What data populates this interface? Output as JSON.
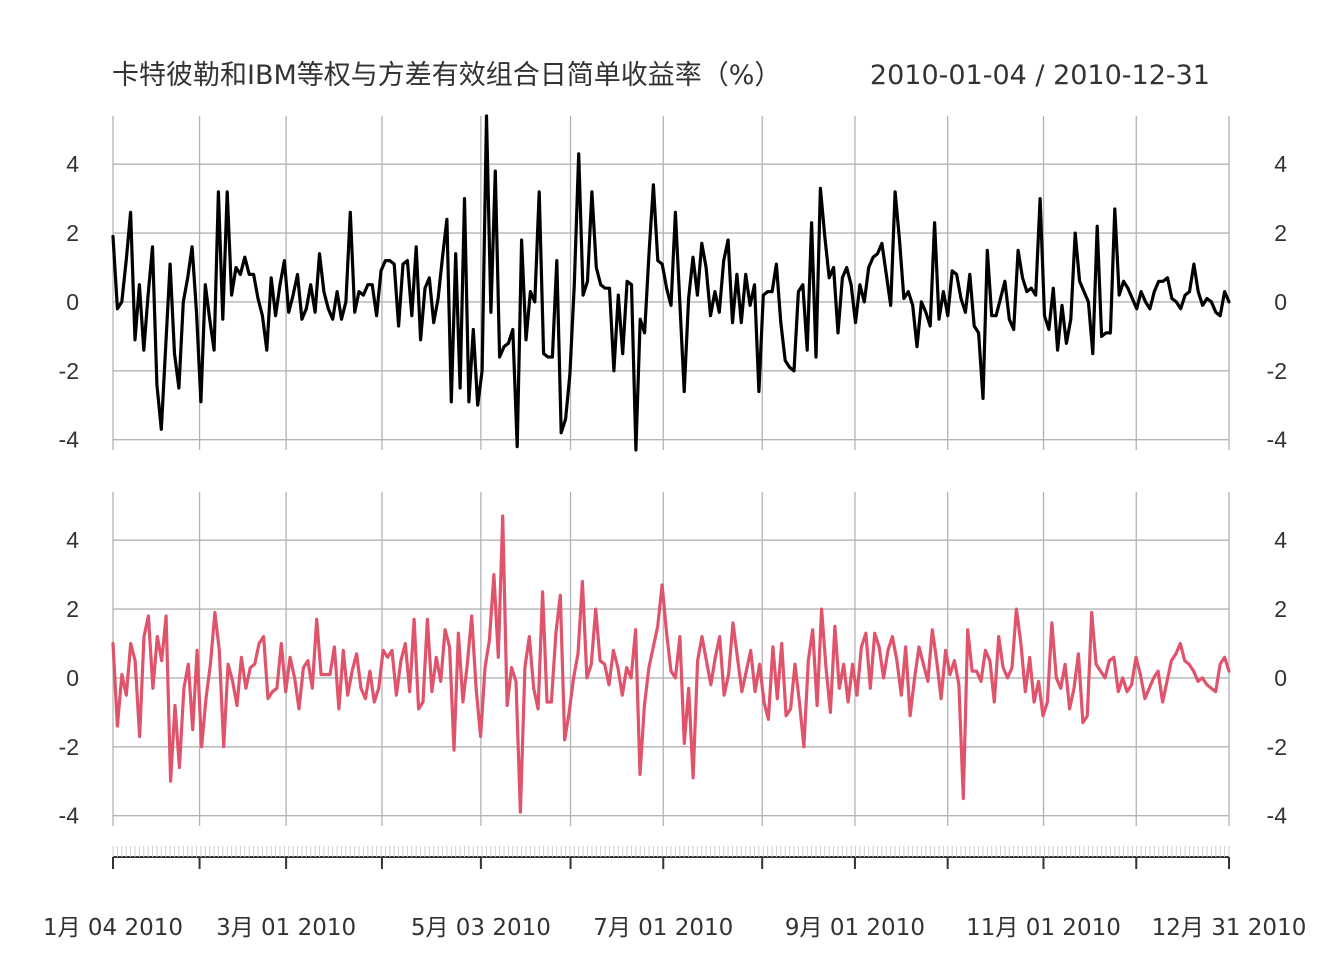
{
  "chart_data": {
    "type": "line",
    "title": "卡特彼勒和IBM等权与方差有效组合日简单收益率（%）",
    "date_range": "2010-01-04 / 2010-12-31",
    "ylim": [
      -4.3,
      5.4
    ],
    "y_ticks": [
      "4",
      "2",
      "0",
      "-2",
      "-4"
    ],
    "y_tick_values": [
      4,
      2,
      0,
      -2,
      -4
    ],
    "x_start": "2010-01-04",
    "x_end": "2010-12-31",
    "x_tick_labels": [
      {
        "label": "1月 04 2010",
        "date": "2010-01-04"
      },
      {
        "label": "3月 01 2010",
        "date": "2010-03-01"
      },
      {
        "label": "5月 03 2010",
        "date": "2010-05-03"
      },
      {
        "label": "7月 01 2010",
        "date": "2010-07-01"
      },
      {
        "label": "9月 01 2010",
        "date": "2010-09-01"
      },
      {
        "label": "11月 01 2010",
        "date": "2010-11-01"
      },
      {
        "label": "12月 31 2010",
        "date": "2010-12-31"
      }
    ],
    "x_grid_dates": [
      "2010-01-04",
      "2010-02-01",
      "2010-03-01",
      "2010-04-01",
      "2010-05-03",
      "2010-06-01",
      "2010-07-01",
      "2010-08-02",
      "2010-09-01",
      "2010-10-01",
      "2010-11-01",
      "2010-12-01",
      "2010-12-31"
    ],
    "grid": true,
    "series": [
      {
        "color": "#000000",
        "values": [
          1.9,
          -0.2,
          0.0,
          1.2,
          2.6,
          -1.1,
          0.5,
          -1.4,
          0.2,
          1.6,
          -2.4,
          -3.7,
          -1.3,
          1.1,
          -1.5,
          -2.5,
          0.0,
          0.7,
          1.6,
          -0.3,
          -2.9,
          0.5,
          -0.5,
          -1.4,
          3.2,
          -0.5,
          3.2,
          0.2,
          1.0,
          0.8,
          1.3,
          0.8,
          0.8,
          0.1,
          -0.4,
          -1.4,
          0.7,
          -0.4,
          0.5,
          1.2,
          -0.3,
          0.2,
          0.8,
          -0.5,
          -0.2,
          0.5,
          -0.3,
          1.4,
          0.3,
          -0.2,
          -0.5,
          0.3,
          -0.5,
          0.0,
          2.6,
          -0.3,
          0.3,
          0.2,
          0.5,
          0.5,
          -0.4,
          0.9,
          1.2,
          1.2,
          1.1,
          -0.7,
          1.1,
          1.2,
          -0.4,
          1.6,
          -1.1,
          0.4,
          0.7,
          -0.6,
          0.1,
          1.3,
          2.4,
          -2.9,
          1.4,
          -2.5,
          3.0,
          -2.9,
          -0.8,
          -3.0,
          -2.0,
          5.4,
          -0.3,
          3.8,
          -1.6,
          -1.3,
          -1.2,
          -0.8,
          -4.2,
          1.8,
          -1.1,
          0.3,
          0.0,
          3.2,
          -1.5,
          -1.6,
          -1.6,
          1.2,
          -3.8,
          -3.4,
          -2.1,
          0.5,
          4.3,
          0.2,
          0.6,
          3.2,
          1.0,
          0.5,
          0.4,
          0.4,
          -2.0,
          0.2,
          -1.5,
          0.6,
          0.5,
          -4.3,
          -0.5,
          -0.9,
          1.4,
          3.4,
          1.2,
          1.1,
          0.4,
          -0.1,
          2.6,
          0.0,
          -2.6,
          0.1,
          1.3,
          0.2,
          1.7,
          1.0,
          -0.4,
          0.3,
          -0.3,
          1.2,
          1.8,
          -0.6,
          0.8,
          -0.6,
          0.8,
          -0.1,
          0.5,
          -2.6,
          0.2,
          0.3,
          0.3,
          1.1,
          -0.6,
          -1.7,
          -1.9,
          -2.0,
          0.3,
          0.5,
          -1.4,
          2.3,
          -1.6,
          3.3,
          1.9,
          0.7,
          1.0,
          -0.9,
          0.7,
          1.0,
          0.5,
          -0.6,
          0.5,
          0.0,
          1.0,
          1.3,
          1.4,
          1.7,
          0.8,
          -0.1,
          3.2,
          1.8,
          0.1,
          0.3,
          -0.1,
          -1.3,
          0.0,
          -0.3,
          -0.7,
          2.3,
          -0.5,
          0.3,
          -0.4,
          0.9,
          0.8,
          0.1,
          -0.3,
          0.8,
          -0.7,
          -0.9,
          -2.8,
          1.5,
          -0.4,
          -0.4,
          0.1,
          0.6,
          -0.5,
          -0.8,
          1.5,
          0.7,
          0.3,
          0.4,
          0.2,
          3.0,
          -0.4,
          -0.8,
          0.4,
          -1.4,
          -0.1,
          -1.2,
          -0.5,
          2.0,
          0.6,
          0.3,
          0.0,
          -1.5,
          2.2,
          -1.0,
          -0.9,
          -0.9,
          2.7,
          0.2,
          0.6,
          0.4,
          0.1,
          -0.2,
          0.3,
          0.0,
          -0.2,
          0.3,
          0.6,
          0.6,
          0.7,
          0.1,
          0.0,
          -0.2,
          0.2,
          0.3,
          1.1,
          0.3,
          -0.1,
          0.1,
          0.0,
          -0.3,
          -0.4,
          0.3,
          0.0
        ]
      },
      {
        "color": "#df536b",
        "values": [
          1.0,
          -1.4,
          0.1,
          -0.5,
          1.0,
          0.5,
          -1.7,
          1.2,
          1.8,
          -0.3,
          1.2,
          0.5,
          1.8,
          -3.0,
          -0.8,
          -2.6,
          -0.3,
          0.4,
          -1.5,
          0.8,
          -2.0,
          -0.6,
          0.4,
          1.9,
          0.8,
          -2.0,
          0.4,
          -0.1,
          -0.8,
          0.6,
          -0.3,
          0.3,
          0.4,
          1.0,
          1.2,
          -0.6,
          -0.4,
          -0.3,
          1.0,
          -0.4,
          0.6,
          0.0,
          -0.9,
          0.3,
          0.5,
          -0.3,
          1.7,
          0.1,
          0.1,
          0.1,
          0.9,
          -0.9,
          0.8,
          -0.5,
          0.2,
          0.7,
          -0.3,
          -0.6,
          0.2,
          -0.7,
          -0.3,
          0.8,
          0.6,
          0.8,
          -0.5,
          0.5,
          1.0,
          -0.4,
          1.7,
          -0.9,
          -0.7,
          1.7,
          -0.4,
          0.6,
          -0.1,
          1.4,
          0.9,
          -2.1,
          1.3,
          -0.7,
          0.4,
          1.8,
          -0.3,
          -1.7,
          0.3,
          1.1,
          3.0,
          0.6,
          4.7,
          -0.8,
          0.3,
          -0.1,
          -3.9,
          0.3,
          1.2,
          -0.3,
          -0.9,
          2.5,
          -0.7,
          -0.7,
          1.3,
          2.4,
          -1.8,
          -1.0,
          0.0,
          0.7,
          2.8,
          0.0,
          0.4,
          2.0,
          0.5,
          0.4,
          -0.2,
          0.8,
          0.3,
          -0.5,
          0.3,
          0.0,
          1.4,
          -2.8,
          -0.8,
          0.3,
          0.9,
          1.5,
          2.7,
          1.3,
          0.2,
          0.0,
          1.2,
          -1.9,
          -0.3,
          -2.9,
          0.5,
          1.2,
          0.5,
          -0.2,
          0.6,
          1.2,
          -0.5,
          0.1,
          1.6,
          0.6,
          -0.4,
          0.2,
          0.8,
          -0.4,
          0.4,
          -0.7,
          -1.2,
          0.9,
          -0.6,
          1.0,
          -1.1,
          -0.9,
          0.4,
          -0.7,
          -2.0,
          0.5,
          1.4,
          -0.8,
          2.0,
          0.3,
          -1.0,
          1.5,
          -0.3,
          0.4,
          -0.7,
          0.4,
          -0.5,
          0.9,
          1.3,
          -0.3,
          1.3,
          0.9,
          0.0,
          0.8,
          1.2,
          0.5,
          -0.5,
          0.9,
          -1.1,
          0.0,
          0.9,
          0.4,
          -0.1,
          1.4,
          0.5,
          -0.6,
          0.8,
          0.1,
          0.5,
          -0.2,
          -3.5,
          1.4,
          0.2,
          0.2,
          -0.1,
          0.8,
          0.5,
          -0.7,
          1.2,
          0.3,
          0.0,
          0.3,
          2.0,
          1.0,
          -0.4,
          0.6,
          -0.7,
          -0.1,
          -1.1,
          -0.7,
          1.6,
          0.0,
          -0.3,
          0.4,
          -0.9,
          -0.3,
          0.7,
          -1.3,
          -1.1,
          1.9,
          0.4,
          0.2,
          0.0,
          0.5,
          0.6,
          -0.4,
          0.0,
          -0.4,
          -0.2,
          0.6,
          0.1,
          -0.6,
          -0.3,
          0.0,
          0.2,
          -0.7,
          -0.1,
          0.5,
          0.7,
          1.0,
          0.5,
          0.4,
          0.2,
          -0.1,
          0.0,
          -0.2,
          -0.3,
          -0.4,
          0.4,
          0.6,
          0.2
        ]
      }
    ]
  }
}
